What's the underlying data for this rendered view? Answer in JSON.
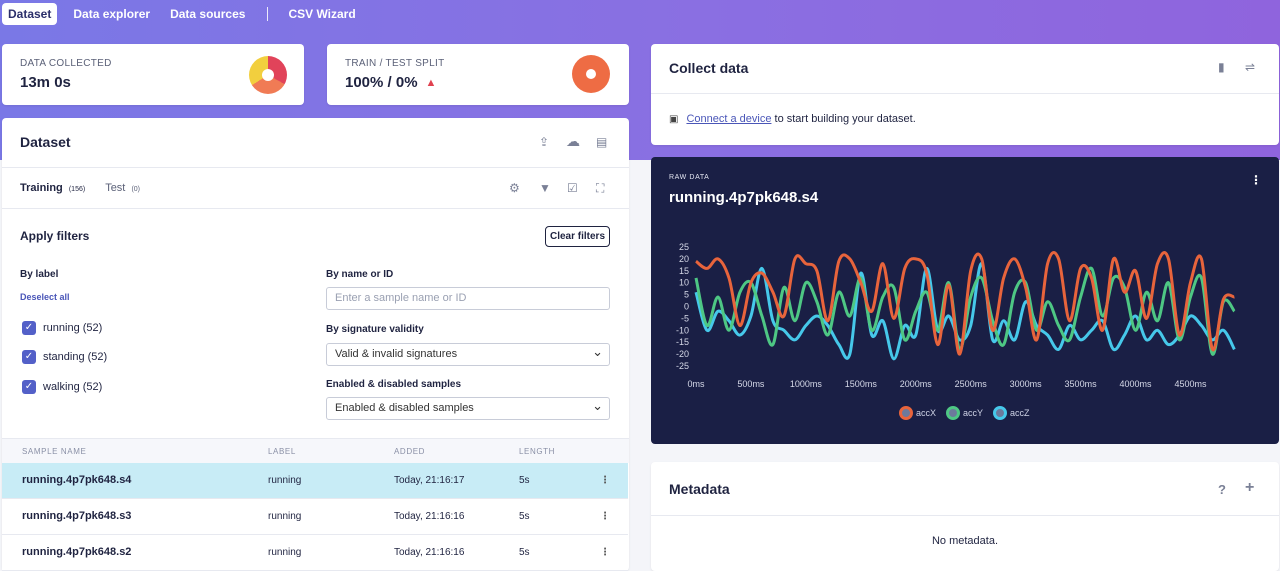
{
  "nav": {
    "tabs": [
      {
        "label": "Dataset",
        "active": true
      },
      {
        "label": "Data explorer",
        "active": false
      },
      {
        "label": "Data sources",
        "active": false
      },
      {
        "label": "CSV Wizard",
        "active": false
      }
    ]
  },
  "stats": {
    "collected": {
      "label": "DATA COLLECTED",
      "value": "13m 0s"
    },
    "split": {
      "label": "TRAIN / TEST SPLIT",
      "value": "100% / 0%",
      "warning_icon": "warning-triangle-icon"
    }
  },
  "dataset": {
    "title": "Dataset",
    "header_icons": [
      "upload-icon",
      "cloud-upload-icon",
      "file-icon"
    ],
    "tabs": [
      {
        "label": "Training",
        "count": "(156)"
      },
      {
        "label": "Test",
        "count": "(0)"
      }
    ],
    "toolbar_icons": [
      "eye-settings-icon",
      "filter-icon",
      "checkbox-icon",
      "fullscreen-icon"
    ],
    "filters": {
      "title": "Apply filters",
      "clear_label": "Clear filters",
      "by_label": "By label",
      "deselect_all": "Deselect all",
      "labels": [
        {
          "text": "running (52)",
          "checked": true
        },
        {
          "text": "standing (52)",
          "checked": true
        },
        {
          "text": "walking (52)",
          "checked": true
        }
      ],
      "by_name": "By name or ID",
      "name_placeholder": "Enter a sample name or ID",
      "by_signature": "By signature validity",
      "signature_value": "Valid & invalid signatures",
      "enabled_label": "Enabled & disabled samples",
      "enabled_value": "Enabled & disabled samples"
    },
    "table": {
      "headers": [
        "SAMPLE NAME",
        "LABEL",
        "ADDED",
        "LENGTH"
      ],
      "rows": [
        {
          "name": "running.4p7pk648.s4",
          "label": "running",
          "added": "Today, 21:16:17",
          "length": "5s",
          "selected": true
        },
        {
          "name": "running.4p7pk648.s3",
          "label": "running",
          "added": "Today, 21:16:16",
          "length": "5s",
          "selected": false
        },
        {
          "name": "running.4p7pk648.s2",
          "label": "running",
          "added": "Today, 21:16:16",
          "length": "5s",
          "selected": false
        }
      ]
    }
  },
  "collect": {
    "title": "Collect data",
    "icons": [
      "device-icon",
      "usb-icon"
    ],
    "link_text": "Connect a device",
    "rest_text": " to start building your dataset."
  },
  "raw_data": {
    "label": "RAW DATA",
    "title": "running.4p7pk648.s4",
    "menu_icon": "kebab-icon"
  },
  "metadata": {
    "title": "Metadata",
    "help": "?",
    "add": "+",
    "empty": "No metadata."
  },
  "chart_data": {
    "type": "line",
    "x_ticks": [
      "0ms",
      "500ms",
      "1000ms",
      "1500ms",
      "2000ms",
      "2500ms",
      "3000ms",
      "3500ms",
      "4000ms",
      "4500ms"
    ],
    "y_ticks": [
      25,
      20,
      15,
      10,
      5,
      0,
      -5,
      -10,
      -15,
      -20,
      -25
    ],
    "xlim": [
      0,
      4960
    ],
    "ylim": [
      -25,
      25
    ],
    "grid": false,
    "legend": "bottom",
    "series": [
      {
        "name": "accX",
        "color": "#e8643c",
        "x": [
          0,
          100,
          200,
          300,
          400,
          500,
          600,
          700,
          800,
          900,
          1000,
          1100,
          1200,
          1300,
          1400,
          1500,
          1600,
          1700,
          1800,
          1900,
          2000,
          2100,
          2200,
          2300,
          2400,
          2500,
          2600,
          2700,
          2800,
          2900,
          3000,
          3100,
          3200,
          3300,
          3400,
          3500,
          3600,
          3700,
          3800,
          3900,
          4000,
          4100,
          4200,
          4300,
          4400,
          4500,
          4600,
          4700,
          4800,
          4900
        ],
        "values": [
          19,
          16,
          20,
          12,
          -8,
          10,
          14,
          6,
          -4,
          20,
          18,
          15,
          -6,
          19,
          20,
          10,
          -2,
          18,
          -5,
          16,
          20,
          14,
          -16,
          9,
          -20,
          15,
          20,
          -10,
          12,
          20,
          8,
          -14,
          18,
          20,
          -6,
          16,
          12,
          -10,
          20,
          6,
          15,
          -5,
          18,
          20,
          -12,
          10,
          20,
          -18,
          3,
          4
        ]
      },
      {
        "name": "accY",
        "color": "#4ec784",
        "x": [
          0,
          100,
          200,
          300,
          400,
          500,
          600,
          700,
          800,
          900,
          1000,
          1100,
          1200,
          1300,
          1400,
          1500,
          1600,
          1700,
          1800,
          1900,
          2000,
          2100,
          2200,
          2300,
          2400,
          2500,
          2600,
          2700,
          2800,
          2900,
          3000,
          3100,
          3200,
          3300,
          3400,
          3500,
          3600,
          3700,
          3800,
          3900,
          4000,
          4100,
          4200,
          4300,
          4400,
          4500,
          4600,
          4700,
          4800,
          4900
        ],
        "values": [
          12,
          -8,
          4,
          -10,
          6,
          10,
          -4,
          -16,
          8,
          -6,
          10,
          2,
          -12,
          6,
          -4,
          12,
          -10,
          4,
          8,
          -14,
          -2,
          6,
          -10,
          10,
          -18,
          4,
          12,
          -6,
          -16,
          6,
          10,
          -10,
          2,
          -8,
          -14,
          4,
          16,
          -4,
          12,
          8,
          -10,
          6,
          -6,
          10,
          -14,
          4,
          12,
          -20,
          2,
          -2
        ]
      },
      {
        "name": "accZ",
        "color": "#46c8ea",
        "x": [
          0,
          100,
          200,
          300,
          400,
          500,
          600,
          700,
          800,
          900,
          1000,
          1100,
          1200,
          1300,
          1400,
          1500,
          1600,
          1700,
          1800,
          1900,
          2000,
          2100,
          2200,
          2300,
          2400,
          2500,
          2600,
          2700,
          2800,
          2900,
          3000,
          3100,
          3200,
          3300,
          3400,
          3500,
          3600,
          3700,
          3800,
          3900,
          4000,
          4100,
          4200,
          4300,
          4400,
          4500,
          4600,
          4700,
          4800,
          4900
        ],
        "values": [
          6,
          -10,
          -2,
          -6,
          -12,
          -4,
          16,
          -6,
          -10,
          -14,
          -8,
          -4,
          -8,
          -16,
          -20,
          14,
          -12,
          -6,
          -22,
          -8,
          -12,
          16,
          -10,
          -4,
          -14,
          -8,
          18,
          -14,
          -6,
          -14,
          2,
          -8,
          -12,
          -18,
          -8,
          -14,
          -10,
          -6,
          -18,
          -12,
          -4,
          -14,
          -10,
          -16,
          -12,
          -4,
          -8,
          -14,
          -10,
          -18
        ]
      }
    ]
  }
}
